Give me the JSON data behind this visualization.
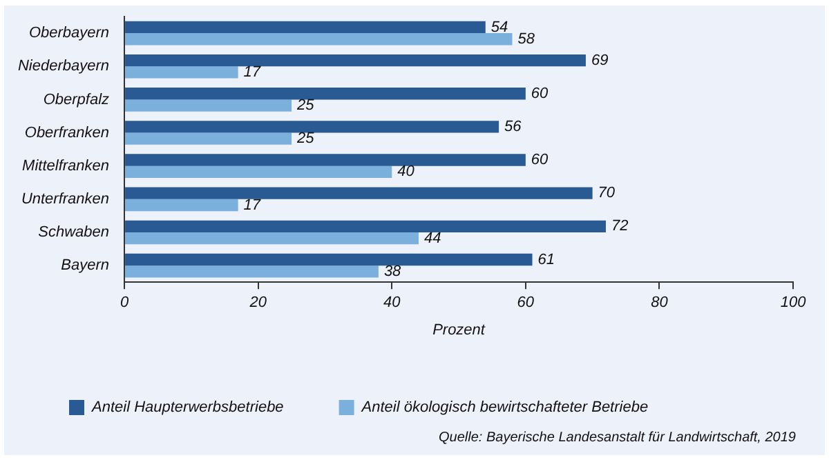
{
  "chart_data": {
    "type": "bar",
    "orientation": "horizontal",
    "categories": [
      "Oberbayern",
      "Niederbayern",
      "Oberpfalz",
      "Oberfranken",
      "Mittelfranken",
      "Unterfranken",
      "Schwaben",
      "Bayern"
    ],
    "series": [
      {
        "name": "Anteil Haupterwerbsbetriebe",
        "color": "#2a5a93",
        "values": [
          54,
          69,
          60,
          56,
          60,
          70,
          72,
          61
        ]
      },
      {
        "name": "Anteil ökologisch bewirtschafteter Betriebe",
        "color": "#7bb0dc",
        "values": [
          58,
          17,
          25,
          25,
          40,
          17,
          44,
          38
        ]
      }
    ],
    "xlabel": "Prozent",
    "xlim": [
      0,
      100
    ],
    "xticks": [
      0,
      20,
      40,
      60,
      80,
      100
    ],
    "grid": false,
    "legend": "bottom",
    "data_labels": true,
    "annotations": [
      "Quelle: Bayerische Landesanstalt für Landwirtschaft, 2019"
    ]
  }
}
